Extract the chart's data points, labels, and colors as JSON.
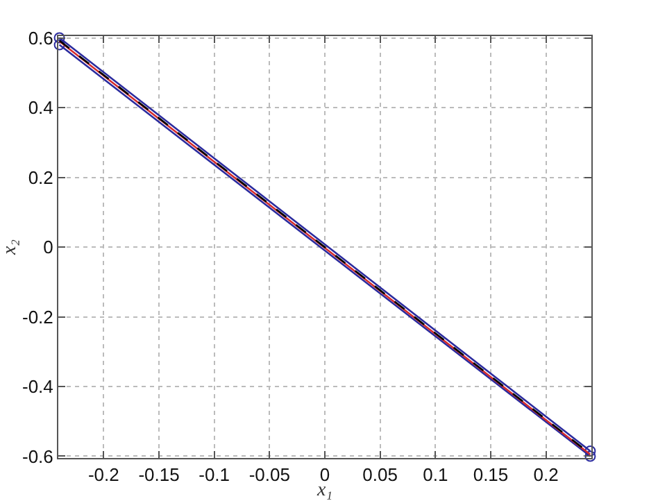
{
  "chart_data": {
    "type": "line",
    "xlabel": "x₁",
    "ylabel": "x₂",
    "xlim": [
      -0.241,
      0.241
    ],
    "ylim": [
      -0.605,
      0.605
    ],
    "xticks": [
      -0.2,
      -0.15,
      -0.1,
      -0.05,
      0,
      0.05,
      0.1,
      0.15,
      0.2
    ],
    "yticks": [
      -0.6,
      -0.4,
      -0.2,
      0,
      0.2,
      0.4,
      0.6
    ],
    "grid": true,
    "x": [
      -0.24,
      0.24
    ],
    "series": [
      {
        "values": [
          0.6,
          -0.585
        ],
        "color": "#2b2b9e",
        "marker": "circle",
        "line_style": "solid"
      },
      {
        "values": [
          0.58,
          -0.6
        ],
        "color": "#2b2b9e",
        "marker": "circle",
        "line_style": "solid"
      },
      {
        "values": [
          0.59,
          -0.595
        ],
        "color": "#d42a2a",
        "marker": "none",
        "line_style": "solid"
      },
      {
        "values": [
          0.592,
          -0.593
        ],
        "color": "#000000",
        "marker": "none",
        "line_style": "dashed"
      }
    ]
  }
}
